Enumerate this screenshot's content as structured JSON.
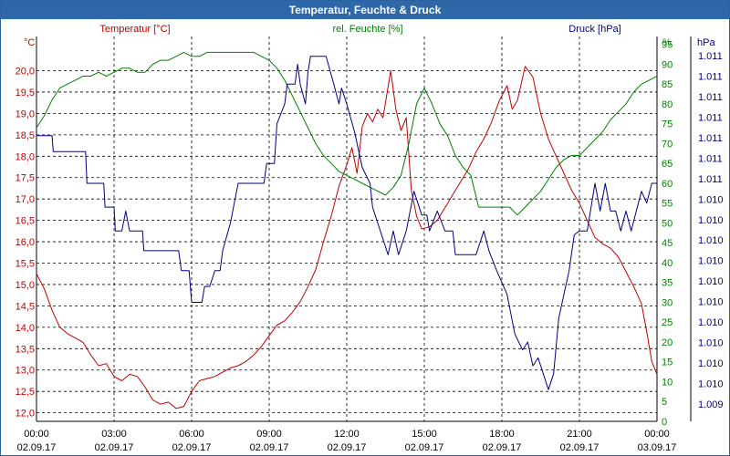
{
  "chart_data": {
    "type": "line",
    "title": "Temperatur, Feuchte & Druck",
    "x_ticks": [
      {
        "time": "00:00",
        "date": "02.09.17"
      },
      {
        "time": "03:00",
        "date": "02.09.17"
      },
      {
        "time": "06:00",
        "date": "02.09.17"
      },
      {
        "time": "09:00",
        "date": "02.09.17"
      },
      {
        "time": "12:00",
        "date": "02.09.17"
      },
      {
        "time": "15:00",
        "date": "02.09.17"
      },
      {
        "time": "18:00",
        "date": "02.09.17"
      },
      {
        "time": "21:00",
        "date": "02.09.17"
      },
      {
        "time": "00:00",
        "date": "03.09.17"
      }
    ],
    "xlim_hours": [
      0,
      24
    ],
    "grid": true,
    "axes": {
      "temperature": {
        "unit": "°C",
        "ylim": [
          11.8,
          20.8
        ],
        "ticks": [
          12.0,
          12.5,
          13.0,
          13.5,
          14.0,
          14.5,
          15.0,
          15.5,
          16.0,
          16.5,
          17.0,
          17.5,
          18.0,
          18.5,
          19.0,
          19.5,
          20.0
        ],
        "tick_labels": [
          "12,0",
          "12,5",
          "13,0",
          "13,5",
          "14,0",
          "14,5",
          "15,0",
          "15,5",
          "16,0",
          "16,5",
          "17,0",
          "17,5",
          "18,0",
          "18,5",
          "19,0",
          "19,5",
          "20,0"
        ]
      },
      "humidity": {
        "unit": "%",
        "ylim": [
          0,
          97
        ],
        "ticks": [
          0,
          5,
          10,
          15,
          20,
          25,
          30,
          35,
          40,
          45,
          50,
          55,
          60,
          65,
          70,
          75,
          80,
          85,
          90,
          95
        ],
        "tick_labels": [
          "0",
          "5",
          "10",
          "15",
          "20",
          "25",
          "30",
          "35",
          "40",
          "45",
          "50",
          "55",
          "60",
          "65",
          "70",
          "75",
          "80",
          "85",
          "90",
          "95"
        ]
      },
      "pressure": {
        "unit": "hPa",
        "tick_labels": [
          "1.009",
          "1.010",
          "1.010",
          "1.010",
          "1.010",
          "1.010",
          "1.010",
          "1.010",
          "1.010",
          "1.010",
          "1.010",
          "1.011",
          "1.011",
          "1.011",
          "1.011",
          "1.011",
          "1.011",
          "1.011"
        ]
      }
    },
    "series": [
      {
        "name": "Temperatur [°C]",
        "color": "#c00000",
        "axis": "temperature",
        "points": [
          [
            0,
            15.25
          ],
          [
            0.3,
            14.9
          ],
          [
            0.6,
            14.4
          ],
          [
            0.9,
            14.0
          ],
          [
            1.2,
            13.85
          ],
          [
            1.5,
            13.75
          ],
          [
            1.8,
            13.65
          ],
          [
            2.1,
            13.35
          ],
          [
            2.4,
            13.1
          ],
          [
            2.7,
            13.15
          ],
          [
            3.0,
            12.85
          ],
          [
            3.3,
            12.75
          ],
          [
            3.6,
            12.9
          ],
          [
            3.9,
            12.85
          ],
          [
            4.2,
            12.6
          ],
          [
            4.5,
            12.3
          ],
          [
            4.8,
            12.2
          ],
          [
            5.1,
            12.25
          ],
          [
            5.4,
            12.1
          ],
          [
            5.7,
            12.15
          ],
          [
            6.0,
            12.5
          ],
          [
            6.3,
            12.75
          ],
          [
            6.6,
            12.8
          ],
          [
            6.9,
            12.85
          ],
          [
            7.2,
            12.95
          ],
          [
            7.5,
            13.05
          ],
          [
            7.8,
            13.1
          ],
          [
            8.1,
            13.2
          ],
          [
            8.4,
            13.35
          ],
          [
            8.7,
            13.55
          ],
          [
            9.0,
            13.8
          ],
          [
            9.3,
            14.05
          ],
          [
            9.6,
            14.15
          ],
          [
            9.9,
            14.35
          ],
          [
            10.2,
            14.6
          ],
          [
            10.5,
            14.95
          ],
          [
            10.8,
            15.35
          ],
          [
            11.1,
            16.0
          ],
          [
            11.4,
            16.6
          ],
          [
            11.7,
            17.3
          ],
          [
            12.0,
            17.8
          ],
          [
            12.2,
            18.2
          ],
          [
            12.4,
            17.6
          ],
          [
            12.6,
            18.7
          ],
          [
            12.8,
            19.0
          ],
          [
            13.0,
            18.8
          ],
          [
            13.2,
            19.1
          ],
          [
            13.4,
            18.9
          ],
          [
            13.7,
            20.0
          ],
          [
            13.9,
            19.1
          ],
          [
            14.1,
            18.6
          ],
          [
            14.3,
            18.9
          ],
          [
            14.5,
            17.2
          ],
          [
            14.7,
            16.6
          ],
          [
            14.9,
            16.3
          ],
          [
            15.2,
            16.35
          ],
          [
            15.5,
            16.5
          ],
          [
            15.8,
            16.8
          ],
          [
            16.1,
            17.1
          ],
          [
            16.4,
            17.4
          ],
          [
            16.7,
            17.7
          ],
          [
            17.0,
            18.1
          ],
          [
            17.3,
            18.4
          ],
          [
            17.6,
            18.8
          ],
          [
            17.9,
            19.3
          ],
          [
            18.2,
            19.65
          ],
          [
            18.4,
            19.1
          ],
          [
            18.6,
            19.3
          ],
          [
            18.9,
            20.1
          ],
          [
            19.2,
            19.85
          ],
          [
            19.5,
            19.0
          ],
          [
            19.8,
            18.4
          ],
          [
            20.1,
            18.0
          ],
          [
            20.4,
            17.6
          ],
          [
            20.7,
            17.2
          ],
          [
            21.0,
            16.9
          ],
          [
            21.3,
            16.5
          ],
          [
            21.6,
            16.1
          ],
          [
            21.9,
            15.95
          ],
          [
            22.2,
            15.85
          ],
          [
            22.5,
            15.65
          ],
          [
            22.8,
            15.3
          ],
          [
            23.1,
            14.95
          ],
          [
            23.4,
            14.55
          ],
          [
            23.6,
            13.9
          ],
          [
            23.8,
            13.2
          ],
          [
            24.0,
            12.9
          ]
        ]
      },
      {
        "name": "rel. Feuchte [%]",
        "color": "#008000",
        "axis": "humidity",
        "points": [
          [
            0,
            74
          ],
          [
            0.3,
            77
          ],
          [
            0.6,
            81
          ],
          [
            0.9,
            84
          ],
          [
            1.2,
            85
          ],
          [
            1.5,
            86
          ],
          [
            1.8,
            87
          ],
          [
            2.1,
            87
          ],
          [
            2.4,
            88
          ],
          [
            2.7,
            87
          ],
          [
            3.0,
            88
          ],
          [
            3.3,
            89
          ],
          [
            3.6,
            89
          ],
          [
            3.9,
            88
          ],
          [
            4.2,
            88
          ],
          [
            4.5,
            90
          ],
          [
            4.8,
            91
          ],
          [
            5.1,
            91
          ],
          [
            5.4,
            92
          ],
          [
            5.7,
            93
          ],
          [
            6.0,
            92
          ],
          [
            6.3,
            92
          ],
          [
            6.6,
            93
          ],
          [
            6.9,
            93
          ],
          [
            7.2,
            93
          ],
          [
            7.5,
            93
          ],
          [
            7.8,
            93
          ],
          [
            8.1,
            93
          ],
          [
            8.4,
            93
          ],
          [
            8.7,
            92
          ],
          [
            9.0,
            91
          ],
          [
            9.3,
            89
          ],
          [
            9.6,
            86
          ],
          [
            9.9,
            82
          ],
          [
            10.2,
            78
          ],
          [
            10.5,
            74
          ],
          [
            10.8,
            70
          ],
          [
            11.1,
            67
          ],
          [
            11.4,
            65
          ],
          [
            11.7,
            63
          ],
          [
            12.0,
            62
          ],
          [
            12.3,
            61
          ],
          [
            12.6,
            60
          ],
          [
            12.9,
            59
          ],
          [
            13.2,
            58
          ],
          [
            13.5,
            57
          ],
          [
            13.8,
            59
          ],
          [
            14.1,
            62
          ],
          [
            14.4,
            70
          ],
          [
            14.7,
            80
          ],
          [
            15.0,
            84
          ],
          [
            15.3,
            80
          ],
          [
            15.6,
            75
          ],
          [
            15.9,
            72
          ],
          [
            16.2,
            67
          ],
          [
            16.5,
            64
          ],
          [
            16.8,
            62
          ],
          [
            17.1,
            54
          ],
          [
            17.4,
            54
          ],
          [
            17.7,
            54
          ],
          [
            18.0,
            54
          ],
          [
            18.3,
            54
          ],
          [
            18.6,
            52
          ],
          [
            18.9,
            54
          ],
          [
            19.2,
            56
          ],
          [
            19.5,
            58
          ],
          [
            19.8,
            61
          ],
          [
            20.1,
            64
          ],
          [
            20.4,
            66
          ],
          [
            20.7,
            67
          ],
          [
            21.0,
            67
          ],
          [
            21.3,
            69
          ],
          [
            21.6,
            71
          ],
          [
            21.9,
            73
          ],
          [
            22.2,
            76
          ],
          [
            22.5,
            78
          ],
          [
            22.8,
            80
          ],
          [
            23.1,
            83
          ],
          [
            23.4,
            85
          ],
          [
            23.7,
            86
          ],
          [
            24.0,
            87
          ]
        ]
      },
      {
        "name": "Druck [hPa]",
        "color": "#000080",
        "axis": "pressure",
        "points": [
          [
            0,
            72
          ],
          [
            0.6,
            72
          ],
          [
            0.65,
            68
          ],
          [
            1.9,
            68
          ],
          [
            1.95,
            60
          ],
          [
            2.6,
            60
          ],
          [
            2.65,
            54
          ],
          [
            3.0,
            54
          ],
          [
            3.05,
            48
          ],
          [
            3.3,
            48
          ],
          [
            3.45,
            53
          ],
          [
            3.6,
            48
          ],
          [
            4.1,
            48
          ],
          [
            4.15,
            43
          ],
          [
            5.5,
            43
          ],
          [
            5.6,
            38
          ],
          [
            5.9,
            38
          ],
          [
            6.0,
            30
          ],
          [
            6.4,
            30
          ],
          [
            6.5,
            34
          ],
          [
            6.7,
            34
          ],
          [
            6.9,
            38
          ],
          [
            7.1,
            38
          ],
          [
            7.2,
            43
          ],
          [
            7.5,
            50
          ],
          [
            7.8,
            60
          ],
          [
            8.8,
            60
          ],
          [
            8.9,
            65
          ],
          [
            9.2,
            65
          ],
          [
            9.3,
            75
          ],
          [
            9.6,
            80
          ],
          [
            9.7,
            85
          ],
          [
            10.0,
            85
          ],
          [
            10.1,
            90
          ],
          [
            10.2,
            85
          ],
          [
            10.4,
            80
          ],
          [
            10.5,
            88
          ],
          [
            10.6,
            92
          ],
          [
            11.2,
            92
          ],
          [
            11.5,
            85
          ],
          [
            11.7,
            80
          ],
          [
            11.8,
            84
          ],
          [
            12.0,
            80
          ],
          [
            12.3,
            73
          ],
          [
            12.6,
            64
          ],
          [
            12.9,
            60
          ],
          [
            13.0,
            54
          ],
          [
            13.3,
            48
          ],
          [
            13.6,
            42
          ],
          [
            13.8,
            48
          ],
          [
            14.0,
            42
          ],
          [
            14.3,
            48
          ],
          [
            14.6,
            58
          ],
          [
            14.9,
            52
          ],
          [
            15.1,
            52
          ],
          [
            15.2,
            48
          ],
          [
            15.5,
            53
          ],
          [
            15.8,
            48
          ],
          [
            16.1,
            48
          ],
          [
            16.2,
            42
          ],
          [
            17.0,
            42
          ],
          [
            17.3,
            48
          ],
          [
            17.5,
            43
          ],
          [
            17.8,
            38
          ],
          [
            18.2,
            32
          ],
          [
            18.5,
            22
          ],
          [
            18.8,
            18
          ],
          [
            19.0,
            20
          ],
          [
            19.2,
            14
          ],
          [
            19.4,
            16
          ],
          [
            19.8,
            8
          ],
          [
            20.0,
            12
          ],
          [
            20.2,
            26
          ],
          [
            20.4,
            32
          ],
          [
            20.6,
            38
          ],
          [
            20.8,
            47
          ],
          [
            21.0,
            48
          ],
          [
            21.3,
            48
          ],
          [
            21.5,
            56
          ],
          [
            21.6,
            60
          ],
          [
            21.8,
            53
          ],
          [
            22.0,
            60
          ],
          [
            22.2,
            53
          ],
          [
            22.4,
            53
          ],
          [
            22.6,
            48
          ],
          [
            22.8,
            53
          ],
          [
            23.0,
            48
          ],
          [
            23.2,
            53
          ],
          [
            23.4,
            58
          ],
          [
            23.6,
            55
          ],
          [
            23.8,
            60
          ],
          [
            24.0,
            60
          ]
        ]
      }
    ]
  }
}
